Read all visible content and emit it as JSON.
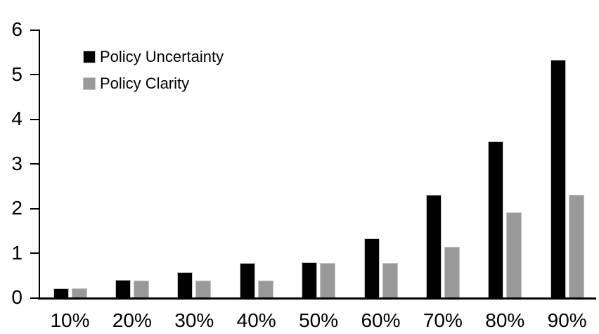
{
  "chart_data": {
    "type": "bar",
    "title": "",
    "xlabel": "",
    "ylabel": "",
    "categories": [
      "10%",
      "20%",
      "30%",
      "40%",
      "50%",
      "60%",
      "70%",
      "80%",
      "90%"
    ],
    "series": [
      {
        "name": "Policy Uncertainty",
        "color": "#000000",
        "values": [
          0.2,
          0.4,
          0.57,
          0.77,
          0.78,
          1.33,
          2.3,
          3.5,
          5.33
        ]
      },
      {
        "name": "Policy Clarity",
        "color": "#999999",
        "values": [
          0.2,
          0.38,
          0.38,
          0.38,
          0.77,
          0.77,
          1.14,
          1.9,
          2.3
        ]
      }
    ],
    "ylim": [
      0,
      6
    ],
    "yticks": [
      0,
      1,
      2,
      3,
      4,
      5,
      6
    ],
    "grid": false,
    "legend_position": "top-left",
    "axis_color": "#000000",
    "background_color": "#ffffff"
  }
}
